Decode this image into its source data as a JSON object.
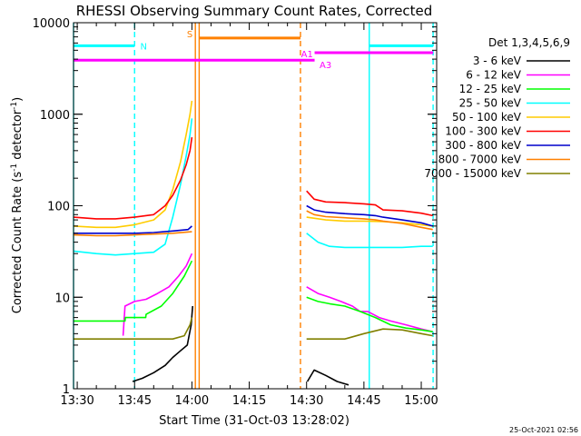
{
  "chart_data": {
    "type": "line",
    "title": "RHESSI Observing Summary Count Rates, Corrected",
    "xlabel": "Start Time (31-Oct-03 13:28:02)",
    "ylabel_main": "Corrected Count Rate (s",
    "ylabel_sup1": "-1",
    "ylabel_mid": " detector",
    "ylabel_sup2": "-1",
    "ylabel_end": ")",
    "ylog": true,
    "ylim": [
      1,
      10000
    ],
    "xlim_minutes": [
      -0.97,
      94.03
    ],
    "x_ticks": [
      {
        "m": 0,
        "label": "13:30"
      },
      {
        "m": 15,
        "label": "13:45"
      },
      {
        "m": 30,
        "label": "14:00"
      },
      {
        "m": 45,
        "label": "14:15"
      },
      {
        "m": 60,
        "label": "14:30"
      },
      {
        "m": 75,
        "label": "14:45"
      },
      {
        "m": 90,
        "label": "15:00"
      }
    ],
    "y_ticks": [
      {
        "v": 1,
        "label": "1"
      },
      {
        "v": 10,
        "label": "10"
      },
      {
        "v": 100,
        "label": "100"
      },
      {
        "v": 1000,
        "label": "1000"
      },
      {
        "v": 10000,
        "label": "10000"
      }
    ],
    "legend_title": "Det 1,3,4,5,6,9",
    "series": [
      {
        "name": "3 - 6 keV",
        "color": "#000000",
        "points": [
          [
            14.5,
            1.2
          ],
          [
            17,
            1.3
          ],
          [
            20,
            1.5
          ],
          [
            23,
            1.8
          ],
          [
            25,
            2.2
          ],
          [
            27,
            2.6
          ],
          [
            28.8,
            3
          ],
          [
            29.8,
            5
          ],
          [
            30.2,
            8
          ],
          [
            60.2,
            1.2
          ],
          [
            62,
            1.6
          ],
          [
            65,
            1.4
          ],
          [
            68,
            1.2
          ],
          [
            71,
            1.1
          ]
        ]
      },
      {
        "name": "6 - 12 keV",
        "color": "#ff00ff",
        "points": [
          [
            12,
            3.8
          ],
          [
            12.5,
            8
          ],
          [
            15,
            9
          ],
          [
            18,
            9.5
          ],
          [
            21,
            11
          ],
          [
            24,
            13
          ],
          [
            26.5,
            17
          ],
          [
            28.5,
            22
          ],
          [
            30,
            30
          ],
          [
            60,
            13
          ],
          [
            63,
            11
          ],
          [
            66,
            10
          ],
          [
            69,
            9
          ],
          [
            72,
            8
          ],
          [
            74,
            7
          ],
          [
            76,
            7
          ],
          [
            79,
            6
          ],
          [
            82,
            5.5
          ],
          [
            86,
            5
          ],
          [
            90,
            4.5
          ],
          [
            93,
            4.2
          ]
        ]
      },
      {
        "name": "12 - 25 keV",
        "color": "#00ff00",
        "points": [
          [
            -0.97,
            5.5
          ],
          [
            12.5,
            5.5
          ],
          [
            12.6,
            6
          ],
          [
            17.9,
            6
          ],
          [
            18,
            6.5
          ],
          [
            22,
            8
          ],
          [
            25,
            11
          ],
          [
            28,
            17
          ],
          [
            30,
            25
          ],
          [
            60,
            10
          ],
          [
            63,
            9
          ],
          [
            66,
            8.5
          ],
          [
            70,
            8
          ],
          [
            74,
            7
          ],
          [
            78,
            6
          ],
          [
            82,
            5
          ],
          [
            86,
            4.6
          ],
          [
            90,
            4.4
          ],
          [
            93,
            4.2
          ]
        ]
      },
      {
        "name": "25 - 50 keV",
        "color": "#00ffff",
        "points": [
          [
            -0.97,
            32
          ],
          [
            5,
            30
          ],
          [
            10,
            29
          ],
          [
            15,
            30
          ],
          [
            20,
            31
          ],
          [
            23,
            38
          ],
          [
            25,
            75
          ],
          [
            27,
            170
          ],
          [
            28.5,
            350
          ],
          [
            29.5,
            600
          ],
          [
            30,
            900
          ],
          [
            60,
            50
          ],
          [
            63,
            40
          ],
          [
            66,
            36
          ],
          [
            70,
            35
          ],
          [
            75,
            35
          ],
          [
            80,
            35
          ],
          [
            85,
            35
          ],
          [
            90,
            36
          ],
          [
            93,
            36
          ]
        ]
      },
      {
        "name": "50 - 100 keV",
        "color": "#ffcc00",
        "points": [
          [
            -0.97,
            60
          ],
          [
            5,
            58
          ],
          [
            10,
            58
          ],
          [
            15,
            62
          ],
          [
            20,
            70
          ],
          [
            23,
            90
          ],
          [
            25,
            150
          ],
          [
            27,
            300
          ],
          [
            28.5,
            600
          ],
          [
            29.5,
            1000
          ],
          [
            30,
            1400
          ],
          [
            60,
            75
          ],
          [
            65,
            70
          ],
          [
            70,
            68
          ],
          [
            75,
            68
          ],
          [
            80,
            67
          ],
          [
            85,
            65
          ],
          [
            90,
            62
          ],
          [
            93,
            60
          ]
        ]
      },
      {
        "name": "100 - 300 keV",
        "color": "#ff0000",
        "points": [
          [
            -0.97,
            75
          ],
          [
            5,
            72
          ],
          [
            10,
            72
          ],
          [
            15,
            75
          ],
          [
            20,
            80
          ],
          [
            23,
            100
          ],
          [
            25,
            130
          ],
          [
            27,
            190
          ],
          [
            28.5,
            280
          ],
          [
            29.5,
            400
          ],
          [
            30,
            560
          ],
          [
            60,
            145
          ],
          [
            62,
            118
          ],
          [
            65,
            110
          ],
          [
            70,
            108
          ],
          [
            75,
            105
          ],
          [
            78,
            102
          ],
          [
            80,
            90
          ],
          [
            85,
            88
          ],
          [
            90,
            83
          ],
          [
            93,
            78
          ]
        ]
      },
      {
        "name": "300 - 800 keV",
        "color": "#0000cc",
        "points": [
          [
            -0.97,
            50
          ],
          [
            5,
            50
          ],
          [
            10,
            50
          ],
          [
            15,
            50
          ],
          [
            20,
            51
          ],
          [
            25,
            53
          ],
          [
            29,
            55
          ],
          [
            30,
            60
          ],
          [
            60,
            100
          ],
          [
            62,
            90
          ],
          [
            65,
            85
          ],
          [
            70,
            82
          ],
          [
            75,
            80
          ],
          [
            78,
            78
          ],
          [
            80,
            75
          ],
          [
            85,
            70
          ],
          [
            90,
            65
          ],
          [
            93,
            60
          ]
        ]
      },
      {
        "name": "800 - 7000 keV",
        "color": "#ff8000",
        "points": [
          [
            -0.97,
            48
          ],
          [
            5,
            47
          ],
          [
            10,
            47
          ],
          [
            15,
            48
          ],
          [
            20,
            49
          ],
          [
            25,
            50
          ],
          [
            30,
            52
          ],
          [
            60,
            88
          ],
          [
            62,
            80
          ],
          [
            65,
            76
          ],
          [
            70,
            74
          ],
          [
            75,
            72
          ],
          [
            78,
            70
          ],
          [
            80,
            68
          ],
          [
            85,
            64
          ],
          [
            90,
            58
          ],
          [
            93,
            55
          ]
        ]
      },
      {
        "name": "7000 - 15000 keV",
        "color": "#808000",
        "points": [
          [
            -0.97,
            3.5
          ],
          [
            5,
            3.5
          ],
          [
            10,
            3.5
          ],
          [
            15,
            3.5
          ],
          [
            20,
            3.5
          ],
          [
            25,
            3.5
          ],
          [
            28,
            3.8
          ],
          [
            29.5,
            5
          ],
          [
            30,
            6
          ],
          [
            60,
            3.5
          ],
          [
            65,
            3.5
          ],
          [
            70,
            3.5
          ],
          [
            75,
            4
          ],
          [
            80,
            4.5
          ],
          [
            85,
            4.4
          ],
          [
            90,
            4
          ],
          [
            93,
            3.8
          ]
        ]
      }
    ],
    "solid_markers": [
      {
        "m": -0.97,
        "color": "#00ffff"
      },
      {
        "m": 31.9,
        "color": "#ff8000"
      },
      {
        "m": 30.9,
        "color": "#ff8000"
      },
      {
        "m": 76.4,
        "color": "#00ffff"
      }
    ],
    "dashed_markers": [
      {
        "m": 15,
        "color": "#00ffff"
      },
      {
        "m": 58.4,
        "color": "#ff8000"
      },
      {
        "m": 93.1,
        "color": "#00ffff"
      }
    ],
    "flag_bars": [
      {
        "label": "N",
        "color": "#00ffff",
        "y": 5600,
        "segments": [
          [
            -0.97,
            15
          ]
        ],
        "label_m": 16.5,
        "label_y": 5600,
        "label_anchor": "start"
      },
      {
        "label": "",
        "color": "#00ffff",
        "y": 5600,
        "segments": [
          [
            76.4,
            93.1
          ]
        ]
      },
      {
        "label": "S",
        "color": "#ff8000",
        "y": 6800,
        "segments": [
          [
            31.9,
            58.4
          ]
        ],
        "label_m": 30.2,
        "label_y": 7600,
        "label_anchor": "end"
      },
      {
        "label": "A1",
        "color": "#ff00ff",
        "y": 4700,
        "segments": [
          [
            62.1,
            93.1
          ]
        ],
        "label_m": 61.7,
        "label_y": 4600,
        "label_anchor": "end"
      },
      {
        "label": "A3",
        "color": "#ff00ff",
        "y": 3900,
        "segments": [
          [
            -0.97,
            62.1
          ]
        ],
        "label_m": 63.4,
        "label_y": 3500,
        "label_anchor": "start"
      }
    ],
    "footer_stamp": "25-Oct-2021 02:56"
  }
}
